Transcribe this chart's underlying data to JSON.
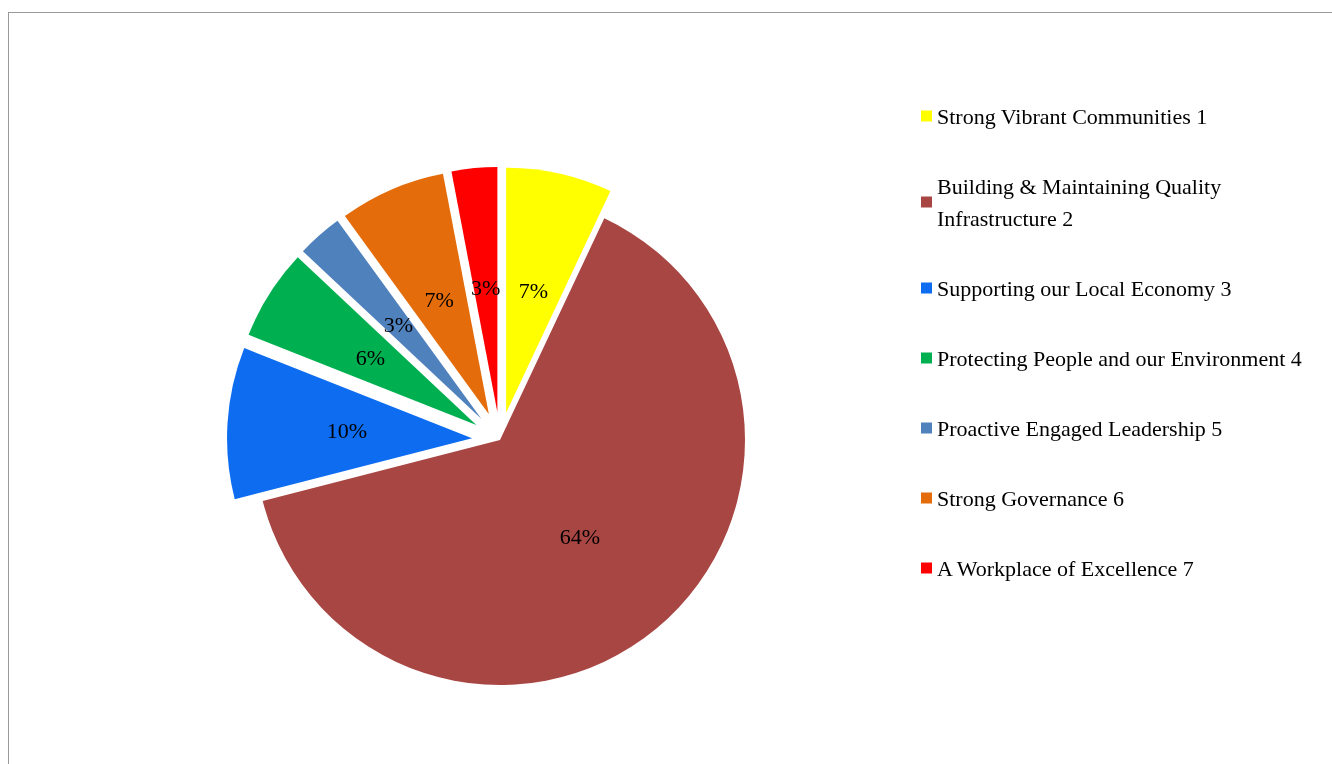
{
  "chart_data": {
    "type": "pie",
    "categories": [
      "Strong Vibrant Communities 1",
      "Building & Maintaining Quality Infrastructure 2",
      "Supporting our Local Economy 3",
      "Protecting People and our Environment 4",
      "Proactive Engaged Leadership 5",
      "Strong Governance 6",
      "A Workplace of Excellence 7"
    ],
    "values": [
      7,
      64,
      10,
      6,
      3,
      7,
      3
    ],
    "colors": [
      "#ffff00",
      "#a84643",
      "#0d6cf0",
      "#00b050",
      "#4f81bd",
      "#e46c0a",
      "#ff0000"
    ],
    "value_labels": [
      "7%",
      "64%",
      "10%",
      "6%",
      "3%",
      "7%",
      "3%"
    ],
    "legend": "right"
  }
}
